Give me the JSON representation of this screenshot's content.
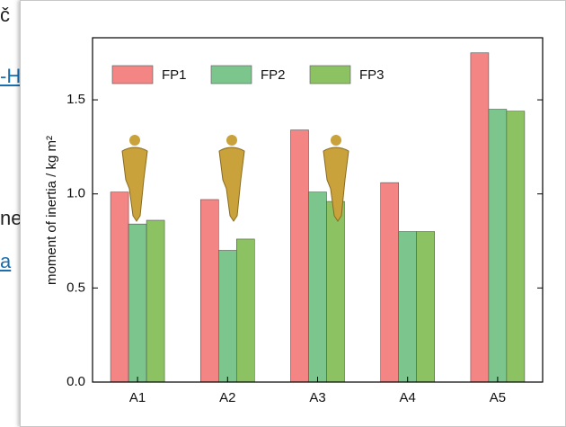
{
  "background": {
    "fragments": [
      "č",
      "-H",
      "ne",
      "a"
    ]
  },
  "chart_data": {
    "type": "bar",
    "y_label": "moment of inertia / kg m²",
    "categories": [
      "A1",
      "A2",
      "A3",
      "A4",
      "A5"
    ],
    "series": [
      {
        "name": "FP1",
        "color": "#f48585",
        "values": [
          1.01,
          0.97,
          1.34,
          1.06,
          1.75
        ]
      },
      {
        "name": "FP2",
        "color": "#7cc58c",
        "values": [
          0.84,
          0.7,
          1.01,
          0.8,
          1.45
        ]
      },
      {
        "name": "FP3",
        "color": "#8dc263",
        "values": [
          0.86,
          0.76,
          0.96,
          0.8,
          1.44
        ]
      }
    ],
    "ylim": [
      0,
      1.83
    ],
    "yticks": [
      {
        "value": 0,
        "label": "0.0"
      },
      0.5,
      {
        "value": 1,
        "label": "1.0"
      },
      1.5
    ],
    "legend": "top-left"
  }
}
